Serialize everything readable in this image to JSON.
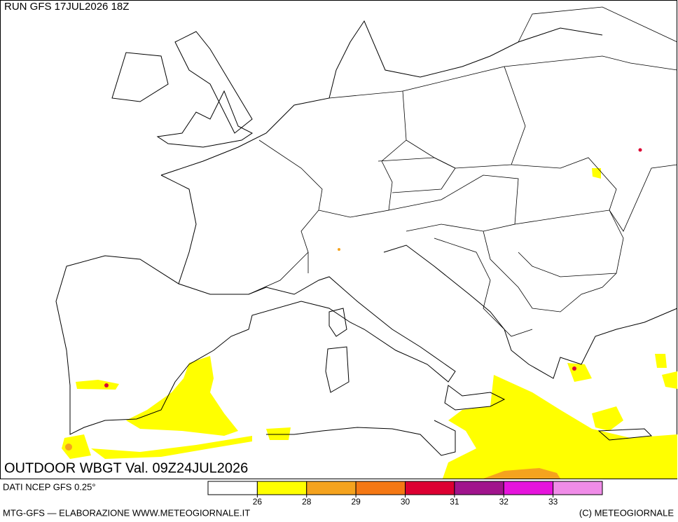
{
  "header": {
    "run": "RUN GFS 17JUL2026 18Z",
    "title": "OUTDOOR WBGT Val. 09Z24JUL2026"
  },
  "footer": {
    "source": "DATI NCEP GFS 0.25°",
    "credit": "MTG-GFS — ELABORAZIONE WWW.METEOGIORNALE.IT",
    "copyright": "(C) METEOGIORNALE"
  },
  "legend": {
    "colors": [
      "#ffffff",
      "#ffff00",
      "#f5a31e",
      "#f57814",
      "#dc0032",
      "#a0148c",
      "#e614dc",
      "#f08ce8"
    ],
    "ticks": [
      26,
      28,
      29,
      30,
      31,
      32,
      33
    ]
  }
}
